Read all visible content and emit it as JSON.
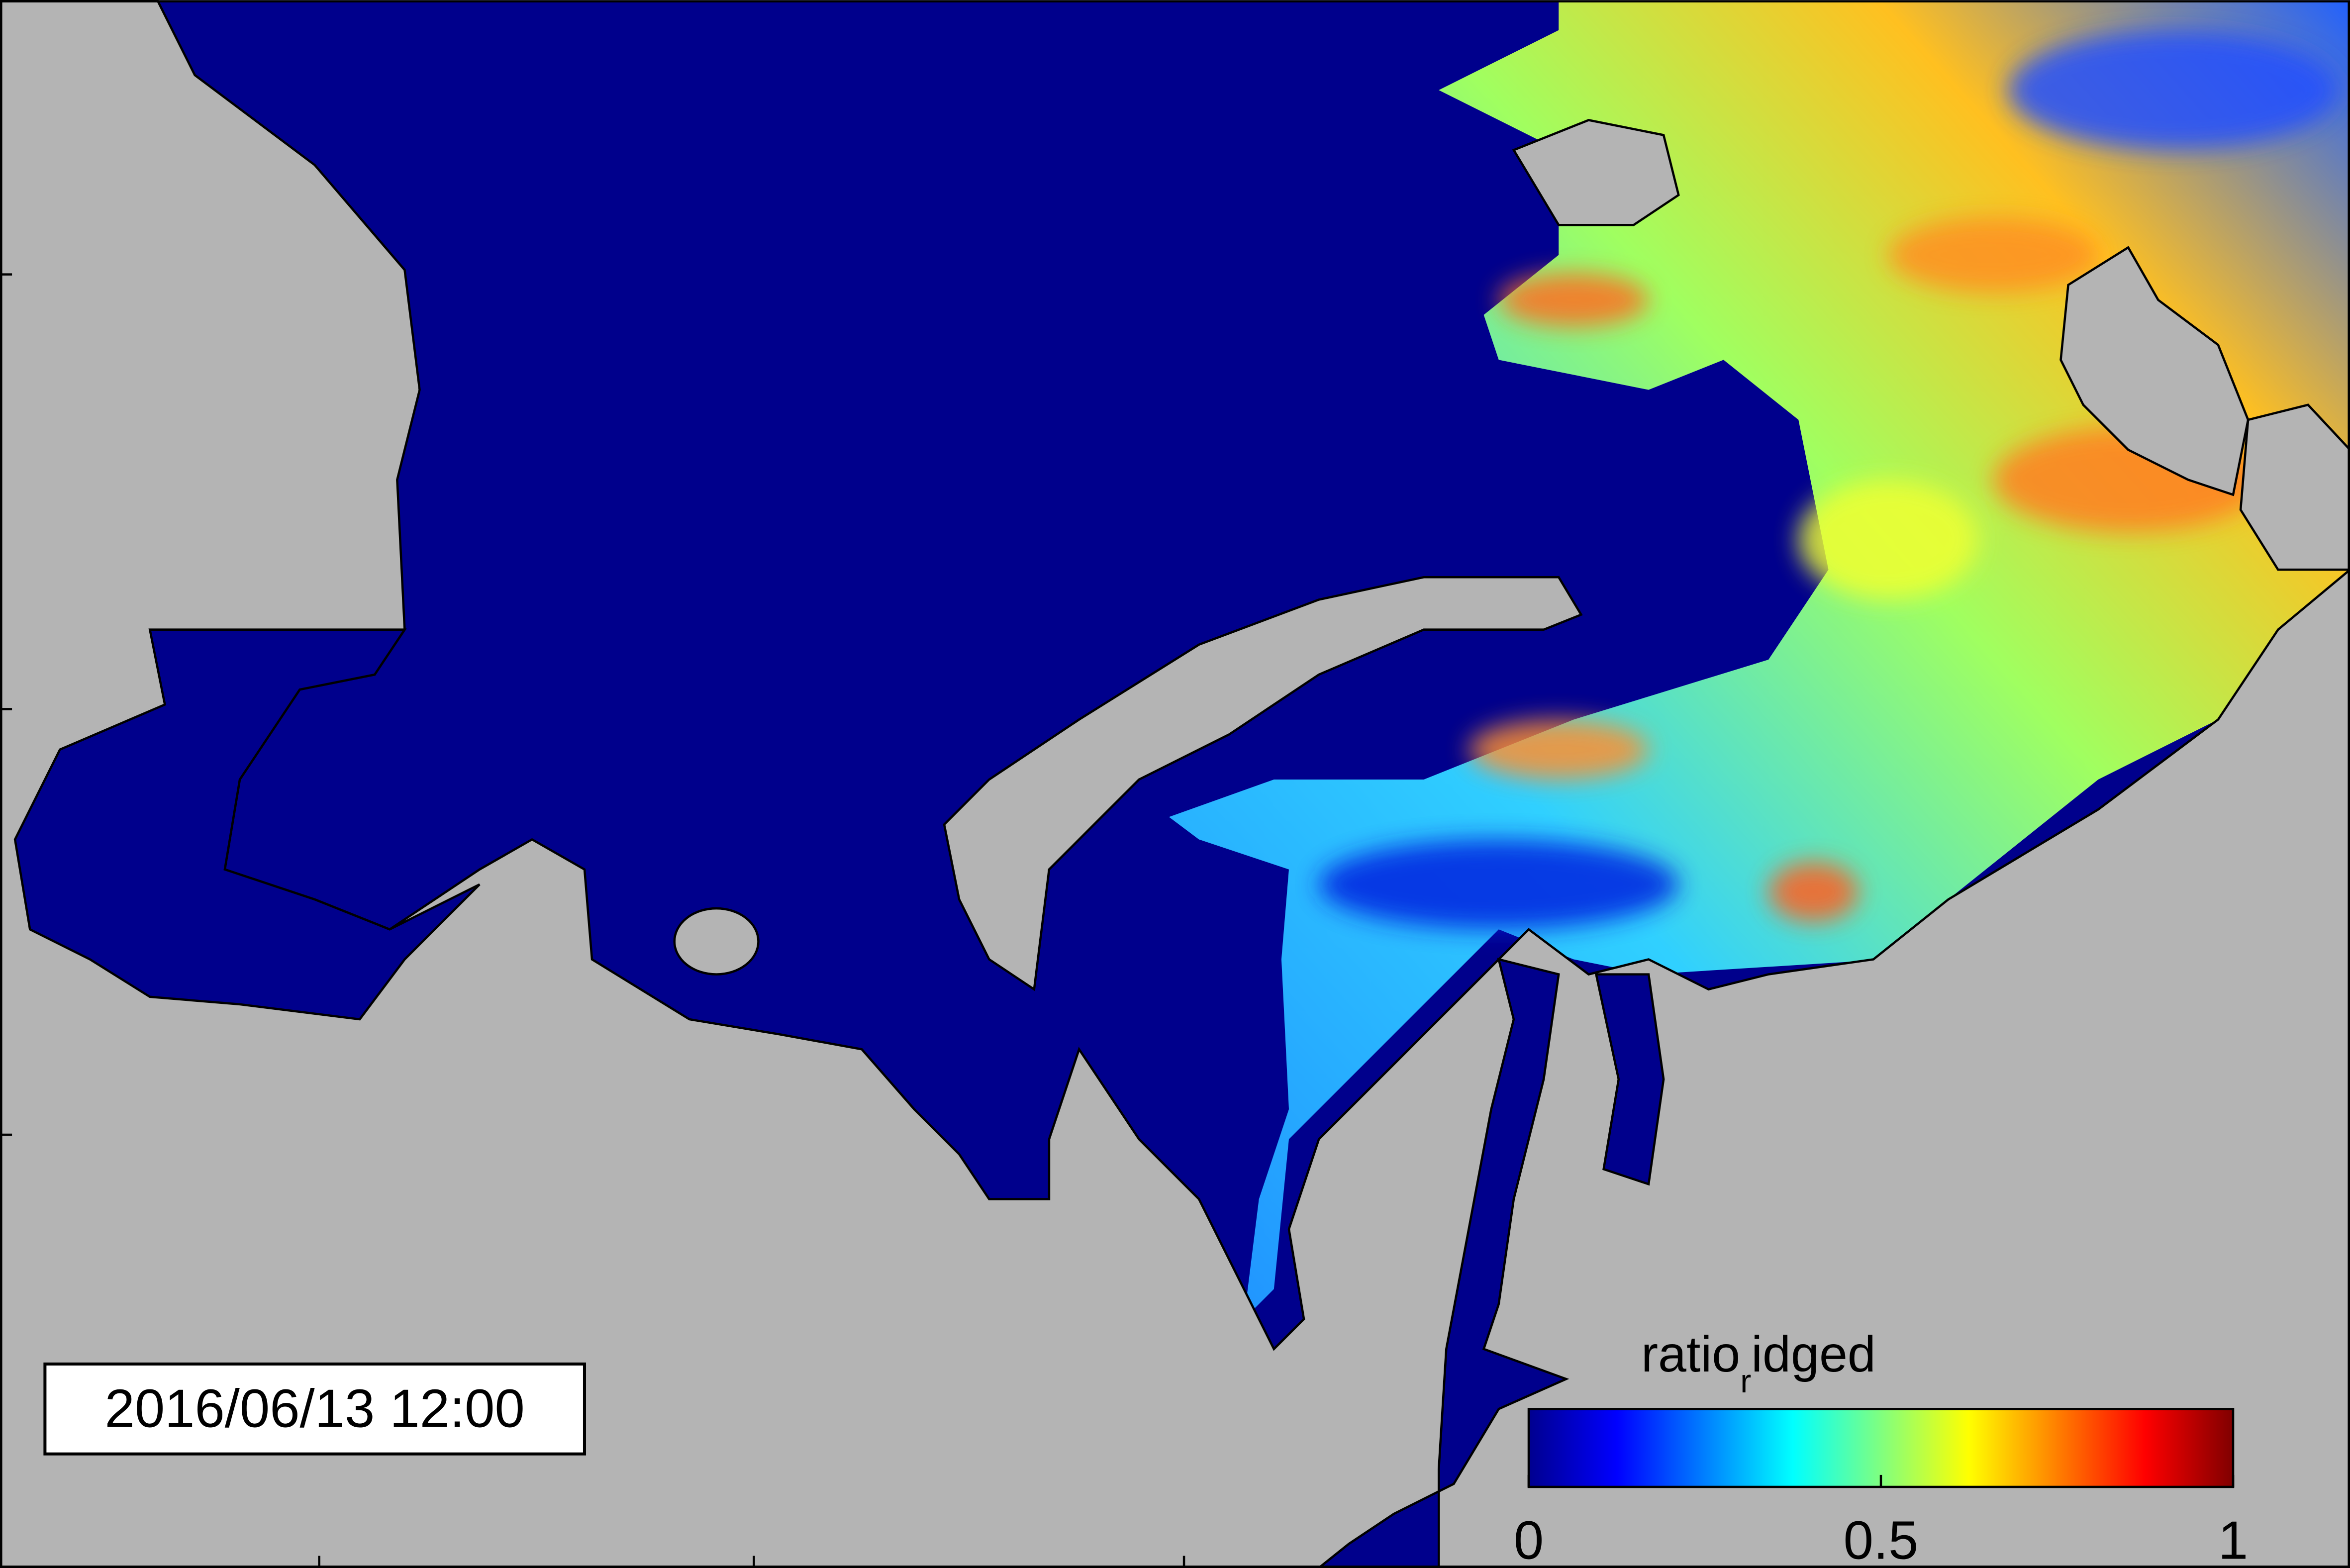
{
  "map": {
    "timestamp": "2016/06/13 12:00",
    "colorbar": {
      "label": {
        "base": "ratio",
        "subscript": "r",
        "rest": "idged"
      },
      "colormap": "jet",
      "lim": [
        0,
        1
      ],
      "ticks": [
        0,
        0.5,
        1
      ]
    }
  }
}
